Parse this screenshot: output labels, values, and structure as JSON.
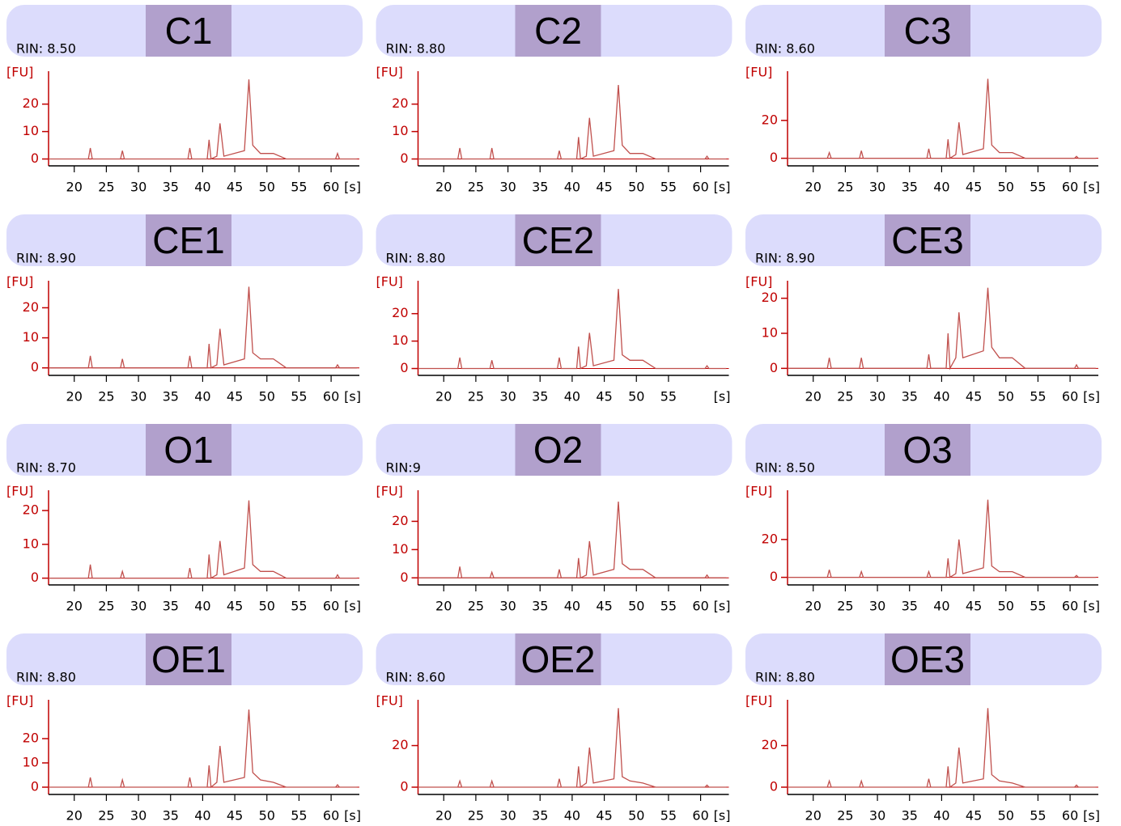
{
  "chart_data": [
    {
      "type": "line",
      "title": "C1",
      "subtitle": "RIN: 8.50",
      "ylabel": "[FU]",
      "xlabel": "[s]",
      "color": "#c0504d",
      "x": [
        16,
        22.2,
        22.5,
        22.8,
        27.2,
        27.5,
        27.8,
        37.7,
        38,
        38.3,
        40.7,
        41,
        41.3,
        42.2,
        42.7,
        43.3,
        46.5,
        47.2,
        47.8,
        49,
        51,
        53,
        60.7,
        61,
        61.3,
        64
      ],
      "values": [
        0,
        0,
        4,
        0,
        0,
        3,
        0,
        0,
        4,
        0,
        0,
        7,
        0,
        1,
        13,
        1,
        3,
        29,
        5,
        2,
        2,
        0,
        0,
        2,
        0,
        0
      ],
      "xlim": [
        16,
        64.4
      ],
      "xticks": [
        20,
        25,
        30,
        35,
        40,
        45,
        50,
        55,
        60
      ],
      "ylim": [
        -2.5,
        32
      ],
      "yticks": [
        0,
        10,
        20
      ]
    },
    {
      "type": "line",
      "title": "C2",
      "subtitle": "RIN: 8.80",
      "ylabel": "[FU]",
      "xlabel": "[s]",
      "color": "#c0504d",
      "x": [
        16,
        22.2,
        22.5,
        22.8,
        27.2,
        27.5,
        27.8,
        37.7,
        38,
        38.3,
        40.7,
        41,
        41.3,
        42.2,
        42.7,
        43.3,
        46.5,
        47.2,
        47.8,
        49,
        51,
        53,
        60.7,
        61,
        61.3,
        64
      ],
      "values": [
        0,
        0,
        4,
        0,
        0,
        4,
        0,
        0,
        3,
        0,
        0,
        8,
        0,
        1,
        15,
        1,
        3,
        27,
        5,
        2,
        2,
        0,
        0,
        1,
        0,
        0
      ],
      "xlim": [
        16,
        64.4
      ],
      "xticks": [
        20,
        25,
        30,
        35,
        40,
        45,
        50,
        55,
        60
      ],
      "ylim": [
        -2.5,
        32
      ],
      "yticks": [
        0,
        10,
        20
      ]
    },
    {
      "type": "line",
      "title": "C3",
      "subtitle": "RIN: 8.60",
      "ylabel": "[FU]",
      "xlabel": "[s]",
      "color": "#c0504d",
      "x": [
        16,
        22.2,
        22.5,
        22.8,
        27.2,
        27.5,
        27.8,
        37.7,
        38,
        38.3,
        40.7,
        41,
        41.3,
        42.2,
        42.7,
        43.3,
        46.5,
        47.2,
        47.8,
        49,
        51,
        53,
        60.7,
        61,
        61.3,
        64
      ],
      "values": [
        0,
        0,
        3,
        0,
        0,
        4,
        0,
        0,
        5,
        0,
        0,
        10,
        0,
        2,
        19,
        2,
        5,
        42,
        7,
        3,
        3,
        0,
        0,
        1,
        0,
        0
      ],
      "xlim": [
        16,
        64.4
      ],
      "xticks": [
        20,
        25,
        30,
        35,
        40,
        45,
        50,
        55,
        60
      ],
      "ylim": [
        -4,
        46
      ],
      "yticks": [
        0,
        20
      ]
    },
    {
      "type": "line",
      "title": "CE1",
      "subtitle": "RIN: 8.90",
      "ylabel": "[FU]",
      "xlabel": "[s]",
      "color": "#c0504d",
      "x": [
        16,
        22.2,
        22.5,
        22.8,
        27.2,
        27.5,
        27.8,
        37.7,
        38,
        38.3,
        40.7,
        41,
        41.3,
        42.2,
        42.7,
        43.3,
        46.5,
        47.2,
        47.8,
        49,
        51,
        53,
        60.7,
        61,
        61.3,
        64
      ],
      "values": [
        0,
        0,
        4,
        0,
        0,
        3,
        0,
        0,
        4,
        0,
        0,
        8,
        0,
        1,
        13,
        1,
        3,
        27,
        5,
        3,
        3,
        0,
        0,
        1,
        0,
        0
      ],
      "xlim": [
        16,
        64.4
      ],
      "xticks": [
        20,
        25,
        30,
        35,
        40,
        45,
        50,
        55,
        60
      ],
      "ylim": [
        -2.5,
        29
      ],
      "yticks": [
        0,
        10,
        20
      ]
    },
    {
      "type": "line",
      "title": "CE2",
      "subtitle": "RIN: 8.80",
      "ylabel": "[FU]",
      "xlabel": "[s]",
      "color": "#c0504d",
      "x": [
        16,
        22.2,
        22.5,
        22.8,
        27.2,
        27.5,
        27.8,
        37.7,
        38,
        38.3,
        40.7,
        41,
        41.3,
        42.2,
        42.7,
        43.3,
        46.5,
        47.2,
        47.8,
        49,
        51,
        53,
        60.7,
        61,
        61.3,
        64
      ],
      "values": [
        0,
        0,
        4,
        0,
        0,
        3,
        0,
        0,
        4,
        0,
        0,
        8,
        0,
        1,
        13,
        1,
        3,
        29,
        5,
        3,
        3,
        0,
        0,
        1,
        0,
        0
      ],
      "xlim": [
        16,
        64.4
      ],
      "xticks": [
        20,
        25,
        30,
        35,
        40,
        45,
        50,
        55
      ],
      "ylim": [
        -2.5,
        32
      ],
      "yticks": [
        0,
        10,
        20
      ]
    },
    {
      "type": "line",
      "title": "CE3",
      "subtitle": "RIN: 8.90",
      "ylabel": "[FU]",
      "xlabel": "[s]",
      "color": "#c0504d",
      "x": [
        16,
        22.2,
        22.5,
        22.8,
        27.2,
        27.5,
        27.8,
        37.7,
        38,
        38.3,
        40.7,
        41,
        41.3,
        42.2,
        42.7,
        43.3,
        46.5,
        47.2,
        47.8,
        49,
        51,
        53,
        60.7,
        61,
        61.3,
        64
      ],
      "values": [
        0,
        0,
        3,
        0,
        0,
        3,
        0,
        0,
        4,
        0,
        0,
        10,
        0,
        3,
        16,
        3,
        5,
        23,
        6,
        3,
        3,
        0,
        0,
        1,
        0,
        0
      ],
      "xlim": [
        16,
        64.4
      ],
      "xticks": [
        20,
        25,
        30,
        35,
        40,
        45,
        50,
        55,
        60
      ],
      "ylim": [
        -2,
        25
      ],
      "yticks": [
        0,
        10,
        20
      ]
    },
    {
      "type": "line",
      "title": "O1",
      "subtitle": "RIN: 8.70",
      "ylabel": "[FU]",
      "xlabel": "[s]",
      "color": "#c0504d",
      "x": [
        16,
        22.2,
        22.5,
        22.8,
        27.2,
        27.5,
        27.8,
        37.7,
        38,
        38.3,
        40.7,
        41,
        41.3,
        42.2,
        42.7,
        43.3,
        46.5,
        47.2,
        47.8,
        49,
        51,
        53,
        60.7,
        61,
        61.3,
        64
      ],
      "values": [
        0,
        0,
        4,
        0,
        0,
        2,
        0,
        0,
        3,
        0,
        0,
        7,
        0,
        1,
        11,
        1,
        3,
        23,
        4,
        2,
        2,
        0,
        0,
        1,
        0,
        0
      ],
      "xlim": [
        16,
        64.4
      ],
      "xticks": [
        20,
        25,
        30,
        35,
        40,
        45,
        50,
        55,
        60
      ],
      "ylim": [
        -2,
        26
      ],
      "yticks": [
        0,
        10,
        20
      ]
    },
    {
      "type": "line",
      "title": "O2",
      "subtitle": "RIN:9",
      "ylabel": "[FU]",
      "xlabel": "[s]",
      "color": "#c0504d",
      "x": [
        16,
        22.2,
        22.5,
        22.8,
        27.2,
        27.5,
        27.8,
        37.7,
        38,
        38.3,
        40.7,
        41,
        41.3,
        42.2,
        42.7,
        43.3,
        46.5,
        47.2,
        47.8,
        49,
        51,
        53,
        60.7,
        61,
        61.3,
        64
      ],
      "values": [
        0,
        0,
        4,
        0,
        0,
        2,
        0,
        0,
        3,
        0,
        0,
        7,
        0,
        1,
        13,
        1,
        3,
        27,
        5,
        3,
        3,
        0,
        0,
        1,
        0,
        0
      ],
      "xlim": [
        16,
        64.4
      ],
      "xticks": [
        20,
        25,
        30,
        35,
        40,
        45,
        50,
        55,
        60
      ],
      "ylim": [
        -2.5,
        31
      ],
      "yticks": [
        0,
        10,
        20
      ]
    },
    {
      "type": "line",
      "title": "O3",
      "subtitle": "RIN: 8.50",
      "ylabel": "[FU]",
      "xlabel": "[s]",
      "color": "#c0504d",
      "x": [
        16,
        22.2,
        22.5,
        22.8,
        27.2,
        27.5,
        27.8,
        37.7,
        38,
        38.3,
        40.7,
        41,
        41.3,
        42.2,
        42.7,
        43.3,
        46.5,
        47.2,
        47.8,
        49,
        51,
        53,
        60.7,
        61,
        61.3,
        64
      ],
      "values": [
        0,
        0,
        4,
        0,
        0,
        3,
        0,
        0,
        3,
        0,
        0,
        10,
        0,
        2,
        20,
        2,
        5,
        41,
        6,
        3,
        3,
        0,
        0,
        1,
        0,
        0
      ],
      "xlim": [
        16,
        64.4
      ],
      "xticks": [
        20,
        25,
        30,
        35,
        40,
        45,
        50,
        55,
        60
      ],
      "ylim": [
        -4,
        46
      ],
      "yticks": [
        0,
        20
      ]
    },
    {
      "type": "line",
      "title": "OE1",
      "subtitle": "RIN: 8.80",
      "ylabel": "[FU]",
      "xlabel": "[s]",
      "color": "#c0504d",
      "x": [
        16,
        22.2,
        22.5,
        22.8,
        27.2,
        27.5,
        27.8,
        37.7,
        38,
        38.3,
        40.7,
        41,
        41.3,
        42.2,
        42.7,
        43.3,
        46.5,
        47.2,
        47.8,
        49,
        51,
        53,
        60.7,
        61,
        61.3,
        64
      ],
      "values": [
        0,
        0,
        4,
        0,
        0,
        3,
        0,
        0,
        4,
        0,
        0,
        9,
        0,
        2,
        17,
        2,
        4,
        32,
        6,
        3,
        2,
        0,
        0,
        1,
        0,
        0
      ],
      "xlim": [
        16,
        64.4
      ],
      "xticks": [
        20,
        25,
        30,
        35,
        40,
        45,
        50,
        55,
        60
      ],
      "ylim": [
        -3,
        36
      ],
      "yticks": [
        0,
        10,
        20
      ]
    },
    {
      "type": "line",
      "title": "OE2",
      "subtitle": "RIN: 8.60",
      "ylabel": "[FU]",
      "xlabel": "[s]",
      "color": "#c0504d",
      "x": [
        16,
        22.2,
        22.5,
        22.8,
        27.2,
        27.5,
        27.8,
        37.7,
        38,
        38.3,
        40.7,
        41,
        41.3,
        42.2,
        42.7,
        43.3,
        46.5,
        47.2,
        47.8,
        49,
        51,
        53,
        60.7,
        61,
        61.3,
        64
      ],
      "values": [
        0,
        0,
        3,
        0,
        0,
        3,
        0,
        0,
        4,
        0,
        0,
        10,
        0,
        2,
        19,
        2,
        4,
        38,
        5,
        3,
        2,
        0,
        0,
        1,
        0,
        0
      ],
      "xlim": [
        16,
        64.4
      ],
      "xticks": [
        20,
        25,
        30,
        35,
        40,
        45,
        50,
        55,
        60
      ],
      "ylim": [
        -3.5,
        42
      ],
      "yticks": [
        0,
        20
      ]
    },
    {
      "type": "line",
      "title": "OE3",
      "subtitle": "RIN: 8.80",
      "ylabel": "[FU]",
      "xlabel": "[s]",
      "color": "#c0504d",
      "x": [
        16,
        22.2,
        22.5,
        22.8,
        27.2,
        27.5,
        27.8,
        37.7,
        38,
        38.3,
        40.7,
        41,
        41.3,
        42.2,
        42.7,
        43.3,
        46.5,
        47.2,
        47.8,
        49,
        51,
        53,
        60.7,
        61,
        61.3,
        64
      ],
      "values": [
        0,
        0,
        3,
        0,
        0,
        3,
        0,
        0,
        4,
        0,
        0,
        10,
        0,
        2,
        19,
        2,
        4,
        38,
        6,
        3,
        2,
        0,
        0,
        1,
        0,
        0
      ],
      "xlim": [
        16,
        64.4
      ],
      "xticks": [
        20,
        25,
        30,
        35,
        40,
        45,
        50,
        55,
        60
      ],
      "ylim": [
        -3.5,
        42
      ],
      "yticks": [
        0,
        20
      ]
    }
  ]
}
